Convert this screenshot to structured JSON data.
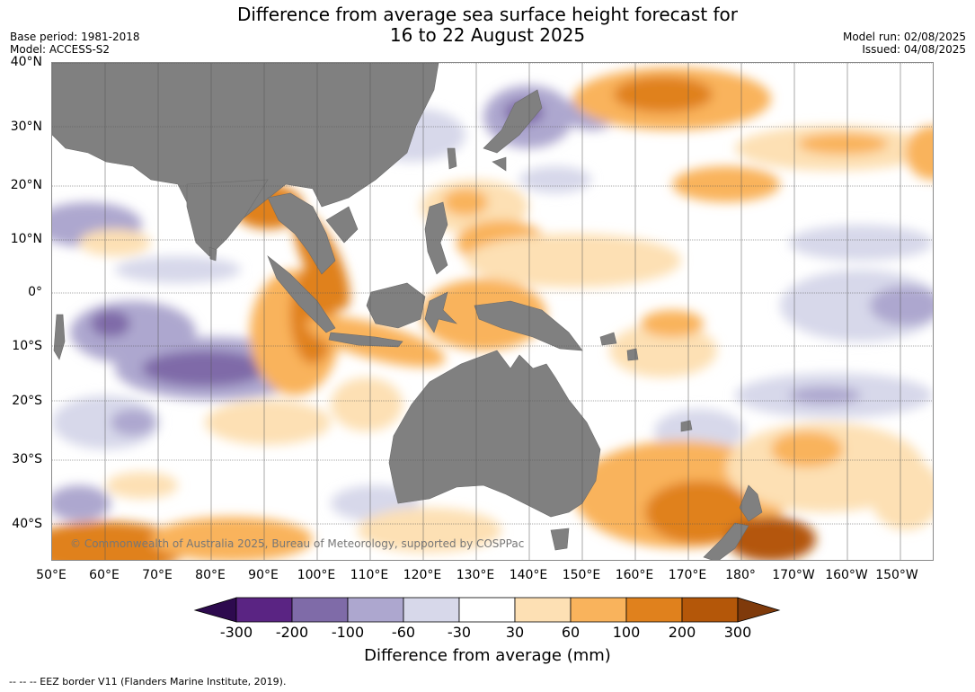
{
  "header": {
    "title_line1": "Difference from average sea surface height forecast for",
    "title_line2": "16 to 22 August 2025",
    "base_period": "Base period: 1981-2018",
    "model": "Model: ACCESS-S2",
    "model_run": "Model run: 02/08/2025",
    "issued": "Issued: 04/08/2025"
  },
  "map": {
    "lat_labels": [
      "40°N",
      "30°N",
      "20°N",
      "10°N",
      "0°",
      "10°S",
      "20°S",
      "30°S",
      "40°S"
    ],
    "lon_labels": [
      "50°E",
      "60°E",
      "70°E",
      "80°E",
      "90°E",
      "100°E",
      "110°E",
      "120°E",
      "130°E",
      "140°E",
      "150°E",
      "160°E",
      "170°E",
      "180°",
      "170°W",
      "160°W",
      "150°W"
    ],
    "copyright": "© Commonwealth of Australia 2025, Bureau of Meteorology, supported by COSPPac",
    "land_color": "#808080",
    "ocean_color": "#ffffff"
  },
  "colorbar": {
    "title": "Difference from average (mm)",
    "tick_labels": [
      "-300",
      "-200",
      "-100",
      "-60",
      "-30",
      "30",
      "60",
      "100",
      "200",
      "300"
    ],
    "colors": [
      "#2d0a4e",
      "#5a2483",
      "#7f6ba8",
      "#ada7cf",
      "#d7d8ea",
      "#ffffff",
      "#fde0b4",
      "#f9b35c",
      "#e0811d",
      "#b45709",
      "#7f3a0b"
    ]
  },
  "footer": {
    "legend_note": "--  --  -- EEZ border V11 (Flanders Marine Institute, 2019)."
  }
}
